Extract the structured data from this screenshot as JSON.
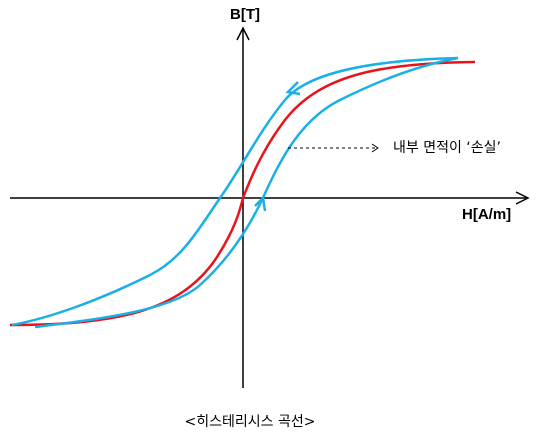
{
  "axis_y_label": "B[T]",
  "axis_x_label": "H[A/m]",
  "annotation": "내부 면적이 ‘손실’",
  "caption": "<히스테리시스 곡선>"
}
